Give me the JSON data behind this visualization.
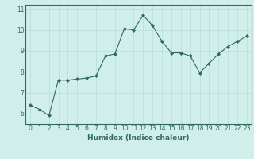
{
  "xlabel": "Humidex (Indice chaleur)",
  "ylabel": "",
  "x_values": [
    0,
    1,
    2,
    3,
    4,
    5,
    6,
    7,
    8,
    9,
    10,
    11,
    12,
    13,
    14,
    15,
    16,
    17,
    18,
    19,
    20,
    21,
    22,
    23
  ],
  "y_values": [
    6.4,
    6.2,
    5.9,
    7.6,
    7.6,
    7.65,
    7.7,
    7.8,
    8.75,
    8.85,
    10.05,
    10.0,
    10.7,
    10.2,
    9.45,
    8.9,
    8.9,
    8.75,
    7.95,
    8.4,
    8.85,
    9.2,
    9.45,
    9.7
  ],
  "line_color": "#2e6b5e",
  "marker": "D",
  "marker_size": 2,
  "background_color": "#d0eeea",
  "grid_color": "#b8ddd8",
  "ylim": [
    5.5,
    11.2
  ],
  "xlim": [
    -0.5,
    23.5
  ],
  "yticks": [
    6,
    7,
    8,
    9,
    10,
    11
  ],
  "xticks": [
    0,
    1,
    2,
    3,
    4,
    5,
    6,
    7,
    8,
    9,
    10,
    11,
    12,
    13,
    14,
    15,
    16,
    17,
    18,
    19,
    20,
    21,
    22,
    23
  ],
  "tick_color": "#2e6b5e",
  "label_color": "#2e6b5e",
  "axis_fontsize": 6.5,
  "tick_fontsize": 5.5
}
